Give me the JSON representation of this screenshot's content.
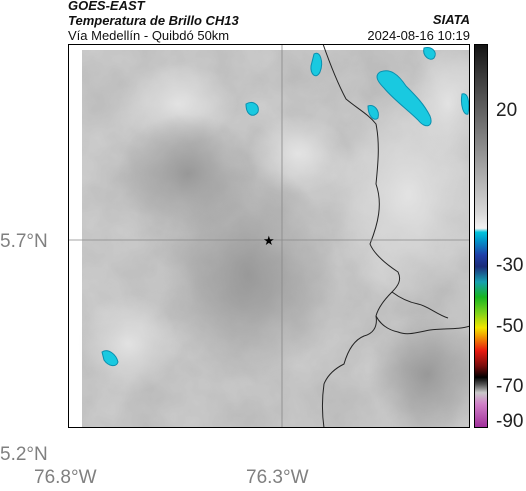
{
  "header": {
    "satellite": "GOES-EAST",
    "product": "Temperatura de Brillo CH13",
    "region": "Vía Medellín - Quibdó 50km",
    "source": "SIATA",
    "datetime": "2024-08-16 10:19"
  },
  "axes": {
    "y_ticks": [
      "5.7°N",
      "5.2°N"
    ],
    "x_ticks": [
      "76.8°W",
      "76.3°W"
    ]
  },
  "colorbar": {
    "tick_labels": [
      "20",
      "-30",
      "-50",
      "-70",
      "-90"
    ],
    "colors": {
      "warm_top": "#1a1a1a",
      "grey_mid": "#a0a0a0",
      "light": "#e8e8e8",
      "cyan": "#00bcd4",
      "blue": "#1f3fa8",
      "green": "#17b51f",
      "yellow": "#f2e600",
      "red": "#e81a10",
      "black": "#000000",
      "magenta": "#a0309a"
    }
  },
  "map": {
    "marker": "star",
    "background_color": "#b8b8b8",
    "cold_cloud_color": "#19c9e0"
  }
}
